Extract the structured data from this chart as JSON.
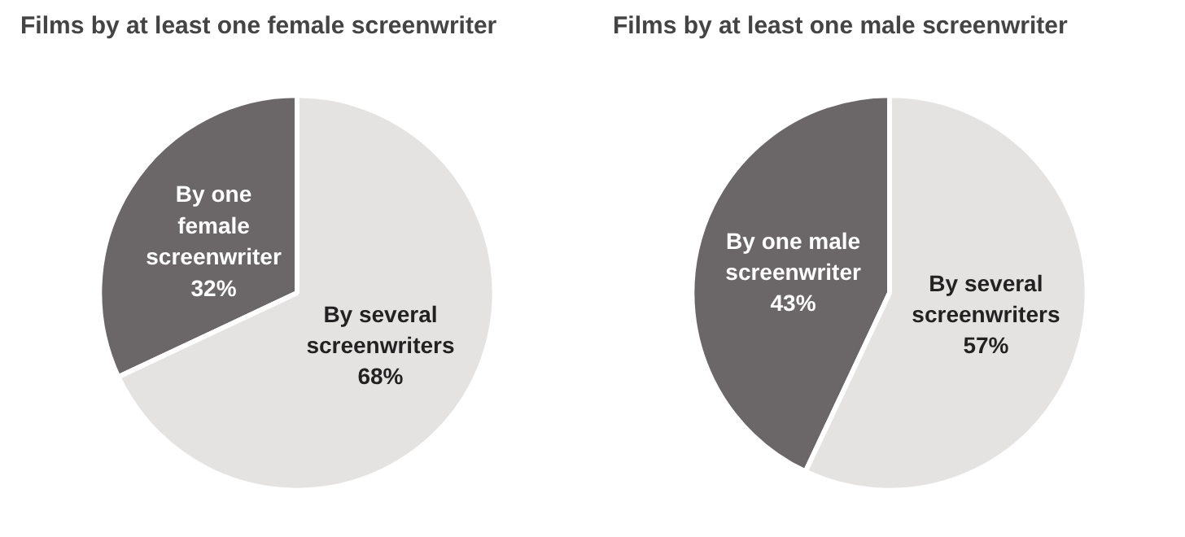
{
  "chart_data": [
    {
      "type": "pie",
      "title": "Films by at least one female screenwriter",
      "categories": [
        "By one female screenwriter",
        "By several screenwriters"
      ],
      "values": [
        32,
        68
      ],
      "colors": [
        "#6b6667",
        "#e5e2e2"
      ],
      "value_labels": [
        "32%",
        "68%"
      ]
    },
    {
      "type": "pie",
      "title": "Films by at least one male screenwriter",
      "categories": [
        "By one male screenwriter",
        "By several screenwriters"
      ],
      "values": [
        43,
        57
      ],
      "colors": [
        "#6b6667",
        "#e5e2e2"
      ],
      "value_labels": [
        "43%",
        "57%"
      ]
    }
  ]
}
